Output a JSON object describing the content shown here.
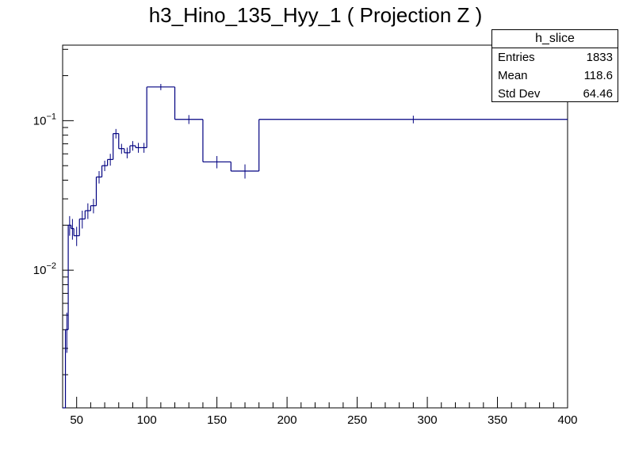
{
  "chart_data": {
    "type": "histogram",
    "title": "h3_Hino_135_Hyy_1 ( Projection Z )",
    "xlabel": "",
    "ylabel": "",
    "xlim": [
      40,
      400
    ],
    "ylim": [
      0.0012,
      0.32
    ],
    "yscale": "log",
    "grid": false,
    "line_color": "#000080",
    "x_ticks": [
      50,
      100,
      150,
      200,
      250,
      300,
      350,
      400
    ],
    "y_ticks": [
      {
        "value": 0.01,
        "label_base": "10",
        "label_exp": "−2"
      },
      {
        "value": 0.1,
        "label_base": "10",
        "label_exp": "−1"
      }
    ],
    "bins": [
      {
        "lo": 40,
        "hi": 42,
        "y": 0.0012
      },
      {
        "lo": 42,
        "hi": 44,
        "y": 0.004,
        "err": 0.0012
      },
      {
        "lo": 44,
        "hi": 46,
        "y": 0.02,
        "err": 0.003
      },
      {
        "lo": 46,
        "hi": 48,
        "y": 0.019,
        "err": 0.003
      },
      {
        "lo": 48,
        "hi": 52,
        "y": 0.017,
        "err": 0.0025
      },
      {
        "lo": 52,
        "hi": 56,
        "y": 0.022,
        "err": 0.003
      },
      {
        "lo": 56,
        "hi": 60,
        "y": 0.025,
        "err": 0.003
      },
      {
        "lo": 60,
        "hi": 64,
        "y": 0.027,
        "err": 0.003
      },
      {
        "lo": 64,
        "hi": 68,
        "y": 0.042,
        "err": 0.004
      },
      {
        "lo": 68,
        "hi": 72,
        "y": 0.05,
        "err": 0.004
      },
      {
        "lo": 72,
        "hi": 76,
        "y": 0.055,
        "err": 0.005
      },
      {
        "lo": 76,
        "hi": 80,
        "y": 0.082,
        "err": 0.006
      },
      {
        "lo": 80,
        "hi": 84,
        "y": 0.065,
        "err": 0.005
      },
      {
        "lo": 84,
        "hi": 88,
        "y": 0.061,
        "err": 0.005
      },
      {
        "lo": 88,
        "hi": 92,
        "y": 0.068,
        "err": 0.005
      },
      {
        "lo": 92,
        "hi": 96,
        "y": 0.066,
        "err": 0.005
      },
      {
        "lo": 96,
        "hi": 100,
        "y": 0.066,
        "err": 0.005
      },
      {
        "lo": 100,
        "hi": 120,
        "y": 0.168,
        "err": 0.008
      },
      {
        "lo": 120,
        "hi": 140,
        "y": 0.102,
        "err": 0.007
      },
      {
        "lo": 140,
        "hi": 160,
        "y": 0.053,
        "err": 0.005
      },
      {
        "lo": 160,
        "hi": 180,
        "y": 0.046,
        "err": 0.005
      },
      {
        "lo": 180,
        "hi": 400,
        "y": 0.102,
        "err": 0.006
      }
    ]
  },
  "stats": {
    "name": "h_slice",
    "rows": [
      {
        "label": "Entries",
        "value": "1833"
      },
      {
        "label": "Mean",
        "value": "118.6"
      },
      {
        "label": "Std Dev",
        "value": "64.46"
      }
    ]
  }
}
